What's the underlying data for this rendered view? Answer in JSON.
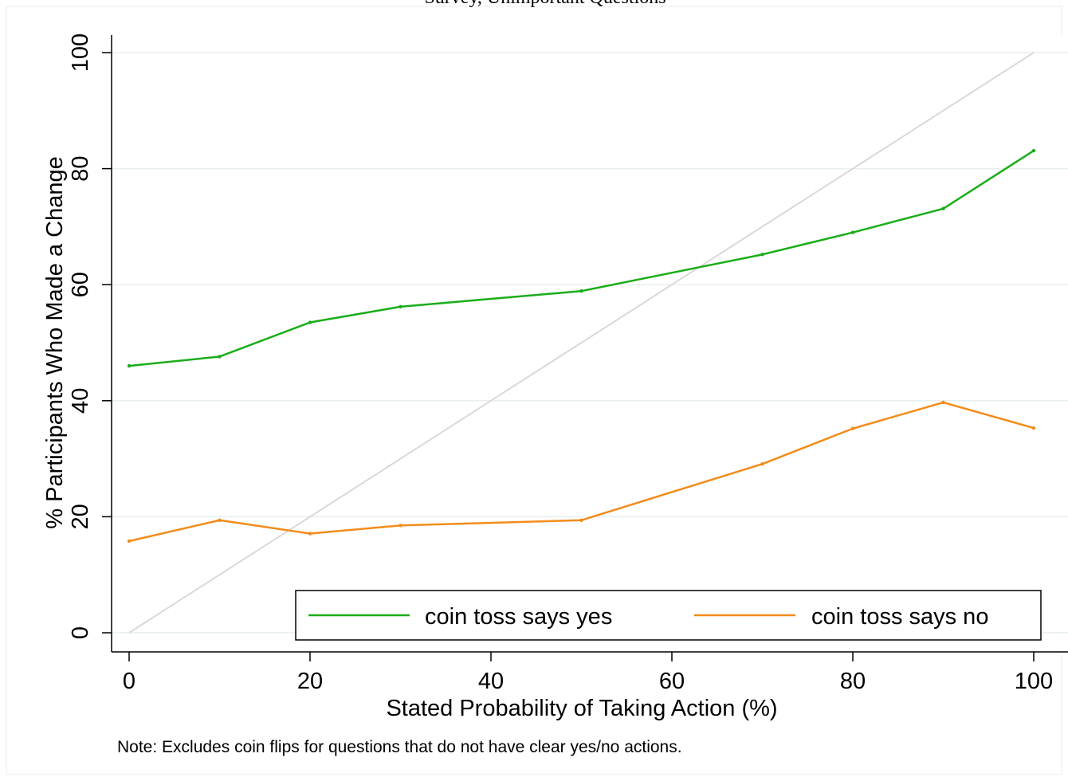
{
  "chart_data": {
    "type": "line",
    "title": "Survey, Unimportant Questions",
    "xlabel": "Stated Probability of Taking Action (%)",
    "ylabel": "% Participants Who Made a Change",
    "note": "Note: Excludes coin flips for questions that do not have clear yes/no actions.",
    "xlim": [
      0,
      100
    ],
    "ylim": [
      0,
      100
    ],
    "xticks": [
      0,
      20,
      40,
      60,
      80,
      100
    ],
    "yticks": [
      0,
      20,
      40,
      60,
      80,
      100
    ],
    "grid": true,
    "legend_position": "bottom-right",
    "reference_line": {
      "x": [
        0,
        10,
        20,
        30,
        40,
        50,
        60,
        70,
        80,
        90,
        100
      ],
      "y": [
        0,
        10,
        20,
        30,
        40,
        50,
        60,
        70,
        80,
        90,
        100
      ],
      "color": "#d9d9d9"
    },
    "series": [
      {
        "name": "coin toss says yes",
        "color": "#1aad19",
        "x": [
          0,
          10,
          20,
          30,
          50,
          70,
          80,
          90,
          100
        ],
        "y": [
          46.0,
          47.6,
          53.5,
          56.2,
          58.9,
          65.2,
          69.0,
          73.1,
          83.1
        ]
      },
      {
        "name": "coin toss says no",
        "color": "#f28c1b",
        "x": [
          0,
          10,
          20,
          30,
          50,
          70,
          80,
          90,
          100
        ],
        "y": [
          15.8,
          19.4,
          17.1,
          18.5,
          19.4,
          29.1,
          35.2,
          39.7,
          35.3
        ]
      }
    ]
  }
}
